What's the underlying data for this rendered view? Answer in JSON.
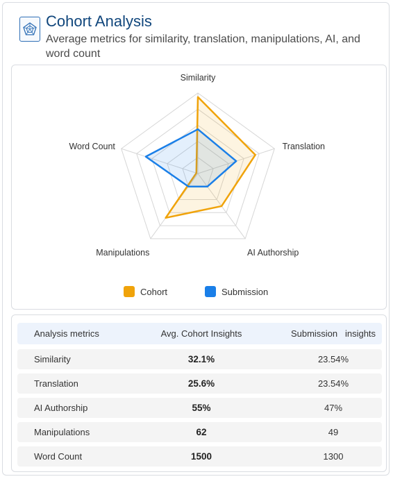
{
  "header": {
    "title": "Cohort Analysis",
    "subtitle": "Average metrics for similarity, translation, manipulations, AI, and word count",
    "icon": "radar-chart-icon"
  },
  "chart_data": {
    "type": "radar",
    "axes": [
      "Similarity",
      "Translation",
      "AI Authorship",
      "Manipulations",
      "Word Count"
    ],
    "levels": 5,
    "range": [
      0,
      1
    ],
    "grid": true,
    "legend_position": "bottom",
    "series": [
      {
        "name": "Cohort",
        "color": "#f0a30a",
        "values": [
          0.95,
          0.75,
          0.5,
          0.68,
          0.02
        ]
      },
      {
        "name": "Submission",
        "color": "#1a7fe8",
        "values": [
          0.55,
          0.5,
          0.2,
          0.2,
          0.68
        ]
      }
    ]
  },
  "table": {
    "headers": [
      "Analysis metrics",
      "Avg. Cohort Insights",
      "Submission   insights"
    ],
    "rows": [
      [
        "Similarity",
        "32.1%",
        "23.54%"
      ],
      [
        "Translation",
        "25.6%",
        "23.54%"
      ],
      [
        "AI Authorship",
        "55%",
        "47%"
      ],
      [
        "Manipulations",
        "62",
        "49"
      ],
      [
        "Word Count",
        "1500",
        "1300"
      ]
    ]
  }
}
